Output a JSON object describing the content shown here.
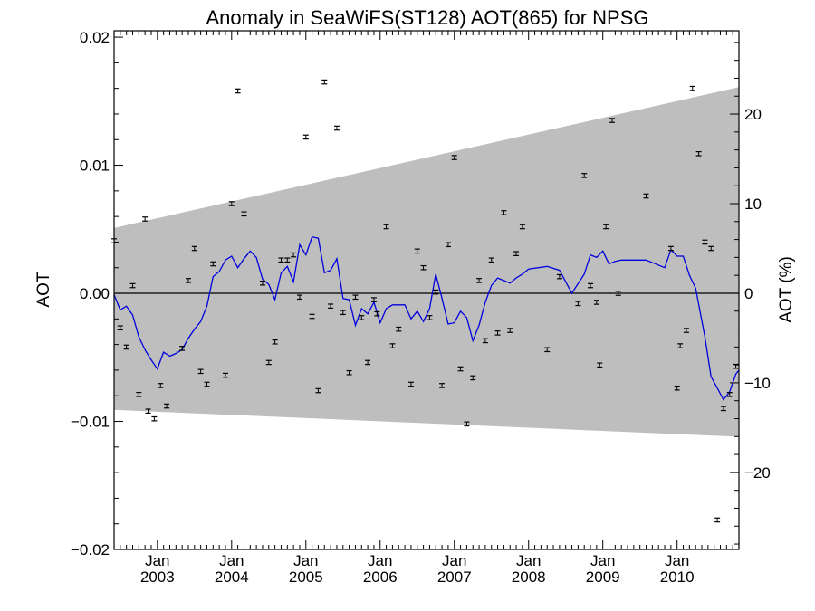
{
  "chart_data": {
    "type": "scatter",
    "title": "Anomaly in SeaWiFS(ST128) AOT(865) for NPSG",
    "ylabel": "AOT",
    "ylabel_right": "AOT (%)",
    "xlim": [
      2002.4167,
      2010.8333
    ],
    "ylim": [
      -0.02,
      0.0205
    ],
    "ylim_right": [
      -28.6,
      29.3
    ],
    "x_ticks": [
      {
        "x": 2003.0,
        "month": "Jan",
        "year": "2003"
      },
      {
        "x": 2004.0,
        "month": "Jan",
        "year": "2004"
      },
      {
        "x": 2005.0,
        "month": "Jan",
        "year": "2005"
      },
      {
        "x": 2006.0,
        "month": "Jan",
        "year": "2006"
      },
      {
        "x": 2007.0,
        "month": "Jan",
        "year": "2007"
      },
      {
        "x": 2008.0,
        "month": "Jan",
        "year": "2008"
      },
      {
        "x": 2009.0,
        "month": "Jan",
        "year": "2009"
      },
      {
        "x": 2010.0,
        "month": "Jan",
        "year": "2010"
      }
    ],
    "y_ticks": [
      {
        "v": 0.02,
        "label": "0.02"
      },
      {
        "v": 0.01,
        "label": "0.01"
      },
      {
        "v": 0.0,
        "label": "0.00"
      },
      {
        "v": -0.01,
        "label": "−0.01"
      },
      {
        "v": -0.02,
        "label": "−0.02"
      }
    ],
    "y_right_ticks": [
      {
        "v": 20,
        "label": "20"
      },
      {
        "v": 10,
        "label": "10"
      },
      {
        "v": 0,
        "label": "0"
      },
      {
        "v": -10,
        "label": "−10"
      },
      {
        "v": -20,
        "label": "−20"
      }
    ],
    "band": {
      "x": [
        2002.4167,
        2010.8333
      ],
      "upper": [
        0.0051,
        0.0161
      ],
      "lower": [
        -0.0091,
        -0.0112
      ]
    },
    "zero_line": 0.0,
    "colors": {
      "band": "#bebebe",
      "running_mean": "#0000dd",
      "points": "#000000"
    },
    "points": [
      {
        "x": 2002.417,
        "y": 0.0041
      },
      {
        "x": 2002.5,
        "y": -0.0027
      },
      {
        "x": 2002.583,
        "y": -0.0042
      },
      {
        "x": 2002.667,
        "y": 0.0006
      },
      {
        "x": 2002.75,
        "y": -0.0079
      },
      {
        "x": 2002.833,
        "y": 0.0058
      },
      {
        "x": 2002.875,
        "y": -0.0092
      },
      {
        "x": 2002.958,
        "y": -0.0098
      },
      {
        "x": 2003.042,
        "y": -0.0072
      },
      {
        "x": 2003.125,
        "y": -0.0088
      },
      {
        "x": 2003.333,
        "y": -0.0043
      },
      {
        "x": 2003.417,
        "y": 0.001
      },
      {
        "x": 2003.5,
        "y": 0.0035
      },
      {
        "x": 2003.583,
        "y": -0.0061
      },
      {
        "x": 2003.667,
        "y": -0.0071
      },
      {
        "x": 2003.75,
        "y": 0.0023
      },
      {
        "x": 2003.917,
        "y": -0.0064
      },
      {
        "x": 2004.0,
        "y": 0.007
      },
      {
        "x": 2004.083,
        "y": 0.0158
      },
      {
        "x": 2004.167,
        "y": 0.0062
      },
      {
        "x": 2004.417,
        "y": 0.0008
      },
      {
        "x": 2004.5,
        "y": -0.0054
      },
      {
        "x": 2004.583,
        "y": -0.0038
      },
      {
        "x": 2004.667,
        "y": 0.0026
      },
      {
        "x": 2004.75,
        "y": 0.0026
      },
      {
        "x": 2004.833,
        "y": 0.003
      },
      {
        "x": 2004.917,
        "y": -0.0003
      },
      {
        "x": 2005.0,
        "y": 0.0122
      },
      {
        "x": 2005.083,
        "y": -0.0018
      },
      {
        "x": 2005.167,
        "y": -0.0076
      },
      {
        "x": 2005.25,
        "y": 0.0165
      },
      {
        "x": 2005.333,
        "y": -0.001
      },
      {
        "x": 2005.417,
        "y": 0.0129
      },
      {
        "x": 2005.5,
        "y": -0.0015
      },
      {
        "x": 2005.583,
        "y": -0.0062
      },
      {
        "x": 2005.667,
        "y": -0.0003
      },
      {
        "x": 2005.75,
        "y": -0.0019
      },
      {
        "x": 2005.833,
        "y": -0.0054
      },
      {
        "x": 2005.917,
        "y": -0.0005
      },
      {
        "x": 2005.958,
        "y": -0.0016
      },
      {
        "x": 2006.083,
        "y": 0.0052
      },
      {
        "x": 2006.167,
        "y": -0.0041
      },
      {
        "x": 2006.25,
        "y": -0.0028
      },
      {
        "x": 2006.417,
        "y": -0.0071
      },
      {
        "x": 2006.5,
        "y": 0.0033
      },
      {
        "x": 2006.583,
        "y": 0.002
      },
      {
        "x": 2006.667,
        "y": -0.0019
      },
      {
        "x": 2006.75,
        "y": 0.0001
      },
      {
        "x": 2006.833,
        "y": -0.0072
      },
      {
        "x": 2006.917,
        "y": 0.0038
      },
      {
        "x": 2007.0,
        "y": 0.0106
      },
      {
        "x": 2007.083,
        "y": -0.0059
      },
      {
        "x": 2007.167,
        "y": -0.0102
      },
      {
        "x": 2007.25,
        "y": -0.0066
      },
      {
        "x": 2007.333,
        "y": 0.001
      },
      {
        "x": 2007.417,
        "y": -0.0037
      },
      {
        "x": 2007.5,
        "y": 0.0026
      },
      {
        "x": 2007.583,
        "y": -0.0031
      },
      {
        "x": 2007.667,
        "y": 0.0063
      },
      {
        "x": 2007.75,
        "y": -0.0029
      },
      {
        "x": 2007.833,
        "y": 0.0031
      },
      {
        "x": 2007.917,
        "y": 0.0052
      },
      {
        "x": 2008.25,
        "y": -0.0044
      },
      {
        "x": 2008.417,
        "y": 0.0013
      },
      {
        "x": 2008.667,
        "y": -0.0008
      },
      {
        "x": 2008.75,
        "y": 0.0092
      },
      {
        "x": 2008.833,
        "y": 0.0006
      },
      {
        "x": 2008.917,
        "y": -0.0007
      },
      {
        "x": 2008.958,
        "y": -0.0056
      },
      {
        "x": 2009.042,
        "y": 0.0052
      },
      {
        "x": 2009.125,
        "y": 0.0135
      },
      {
        "x": 2009.208,
        "y": 0.0
      },
      {
        "x": 2009.583,
        "y": 0.0076
      },
      {
        "x": 2009.917,
        "y": 0.0035
      },
      {
        "x": 2010.0,
        "y": -0.0074
      },
      {
        "x": 2010.042,
        "y": -0.0041
      },
      {
        "x": 2010.125,
        "y": -0.0029
      },
      {
        "x": 2010.208,
        "y": 0.016
      },
      {
        "x": 2010.292,
        "y": 0.0109
      },
      {
        "x": 2010.375,
        "y": 0.004
      },
      {
        "x": 2010.458,
        "y": 0.0035
      },
      {
        "x": 2010.542,
        "y": -0.0177
      },
      {
        "x": 2010.625,
        "y": -0.009
      },
      {
        "x": 2010.708,
        "y": -0.0079
      },
      {
        "x": 2010.792,
        "y": -0.0057
      }
    ],
    "running_mean": {
      "x": [
        2002.417,
        2002.5,
        2002.583,
        2002.667,
        2002.75,
        2002.833,
        2002.917,
        2003.0,
        2003.083,
        2003.167,
        2003.25,
        2003.333,
        2003.417,
        2003.5,
        2003.583,
        2003.667,
        2003.75,
        2003.833,
        2003.917,
        2004.0,
        2004.083,
        2004.167,
        2004.25,
        2004.333,
        2004.417,
        2004.5,
        2004.583,
        2004.667,
        2004.75,
        2004.833,
        2004.917,
        2005.0,
        2005.083,
        2005.167,
        2005.25,
        2005.333,
        2005.417,
        2005.5,
        2005.583,
        2005.667,
        2005.75,
        2005.833,
        2005.917,
        2006.0,
        2006.083,
        2006.167,
        2006.25,
        2006.333,
        2006.417,
        2006.5,
        2006.583,
        2006.667,
        2006.75,
        2006.833,
        2006.917,
        2007.0,
        2007.083,
        2007.167,
        2007.25,
        2007.333,
        2007.417,
        2007.5,
        2007.583,
        2007.667,
        2007.75,
        2007.833,
        2007.917,
        2008.0,
        2008.25,
        2008.417,
        2008.583,
        2008.75,
        2008.833,
        2008.917,
        2009.0,
        2009.083,
        2009.167,
        2009.25,
        2009.583,
        2009.833,
        2009.917,
        2010.0,
        2010.083,
        2010.167,
        2010.25,
        2010.375,
        2010.458,
        2010.542,
        2010.625,
        2010.708,
        2010.792,
        2010.833
      ],
      "y": [
        -0.0001,
        -0.0013,
        -0.001,
        -0.0017,
        -0.0034,
        -0.0044,
        -0.0052,
        -0.0059,
        -0.0046,
        -0.0049,
        -0.0047,
        -0.0044,
        -0.0035,
        -0.0028,
        -0.0022,
        -0.001,
        0.0013,
        0.0017,
        0.0026,
        0.0029,
        0.002,
        0.0027,
        0.0033,
        0.0028,
        0.0011,
        0.0007,
        -0.0005,
        0.0016,
        0.0021,
        0.0009,
        0.0038,
        0.003,
        0.0044,
        0.0043,
        0.0016,
        0.0018,
        0.0027,
        -0.0004,
        -0.0005,
        -0.0025,
        -0.0012,
        -0.0016,
        -0.0007,
        -0.0023,
        -0.0012,
        -0.0009,
        -0.0009,
        -0.0009,
        -0.002,
        -0.0014,
        -0.0022,
        -0.0012,
        0.0015,
        -0.0004,
        -0.0024,
        -0.0023,
        -0.0014,
        -0.0019,
        -0.0037,
        -0.0025,
        -0.0007,
        0.0006,
        0.0012,
        0.001,
        0.0008,
        0.0012,
        0.0015,
        0.0019,
        0.0021,
        0.0018,
        0.0,
        0.0015,
        0.003,
        0.0028,
        0.0033,
        0.0023,
        0.0025,
        0.0026,
        0.0026,
        0.002,
        0.0034,
        0.0029,
        0.0029,
        0.0014,
        0.0004,
        -0.0034,
        -0.0065,
        -0.0074,
        -0.0083,
        -0.0077,
        -0.0063,
        -0.006
      ]
    }
  }
}
